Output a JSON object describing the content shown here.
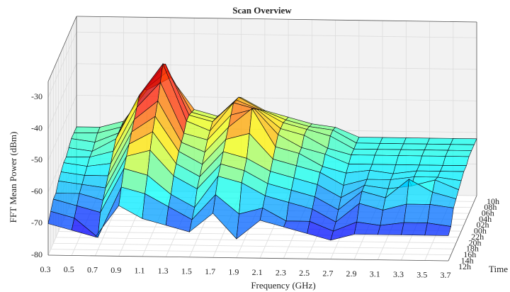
{
  "chart_data": {
    "type": "surface",
    "title": "Scan Overview",
    "xlabel": "Frequency (GHz)",
    "ylabel": "Time",
    "zlabel": "FFT Mean Power (dBm)",
    "x": [
      0.3,
      0.5,
      0.7,
      0.9,
      1.1,
      1.3,
      1.5,
      1.7,
      1.9,
      2.1,
      2.3,
      2.5,
      2.7,
      2.9,
      3.1,
      3.3,
      3.5,
      3.7
    ],
    "xlim": [
      0.3,
      3.7
    ],
    "xticks": [
      0.3,
      0.5,
      0.7,
      0.9,
      1.1,
      1.3,
      1.5,
      1.7,
      1.9,
      2.1,
      2.3,
      2.5,
      2.7,
      2.9,
      3.1,
      3.3,
      3.5,
      3.7
    ],
    "categories": [
      "12h",
      "14h",
      "16h",
      "18h",
      "20h",
      "22h",
      "00h",
      "02h",
      "04h",
      "06h",
      "08h",
      "10h"
    ],
    "zlim": [
      -80,
      -25
    ],
    "zticks": [
      -80,
      -70,
      -60,
      -50,
      -40,
      -30
    ],
    "colormap": "jet",
    "grid": true,
    "z": [
      [
        -70,
        -72,
        -74,
        -64,
        -68,
        -70,
        -72,
        -66,
        -74,
        -68,
        -70,
        -72,
        -74,
        -72,
        -72,
        -72,
        -72,
        -72
      ],
      [
        -68,
        -70,
        -76,
        -60,
        -62,
        -66,
        -70,
        -62,
        -68,
        -66,
        -70,
        -70,
        -73,
        -70,
        -71,
        -70,
        -70,
        -71
      ],
      [
        -66,
        -68,
        -70,
        -56,
        -58,
        -64,
        -68,
        -58,
        -60,
        -64,
        -66,
        -68,
        -72,
        -66,
        -68,
        -66,
        -66,
        -67
      ],
      [
        -66,
        -66,
        -68,
        -54,
        -52,
        -60,
        -64,
        -56,
        -58,
        -62,
        -64,
        -66,
        -70,
        -64,
        -66,
        -60,
        -64,
        -66
      ],
      [
        -64,
        -65,
        -66,
        -52,
        -48,
        -58,
        -62,
        -54,
        -56,
        -60,
        -62,
        -64,
        -68,
        -64,
        -65,
        -64,
        -62,
        -65
      ],
      [
        -63,
        -64,
        -64,
        -50,
        -45,
        -56,
        -60,
        -52,
        -50,
        -58,
        -60,
        -62,
        -66,
        -64,
        -64,
        -63,
        -63,
        -64
      ],
      [
        -62,
        -63,
        -62,
        -48,
        -42,
        -55,
        -58,
        -50,
        -44,
        -56,
        -58,
        -62,
        -64,
        -63,
        -64,
        -63,
        -63,
        -63
      ],
      [
        -62,
        -62,
        -60,
        -46,
        -38,
        -54,
        -56,
        -48,
        -46,
        -54,
        -58,
        -60,
        -63,
        -63,
        -63,
        -63,
        -63,
        -63
      ],
      [
        -61,
        -62,
        -58,
        -44,
        -34,
        -52,
        -55,
        -46,
        -48,
        -54,
        -56,
        -60,
        -62,
        -62,
        -62,
        -62,
        -62,
        -62
      ],
      [
        -60,
        -61,
        -58,
        -45,
        -36,
        -52,
        -54,
        -47,
        -50,
        -54,
        -56,
        -58,
        -62,
        -62,
        -62,
        -62,
        -62,
        -62
      ],
      [
        -60,
        -60,
        -58,
        -46,
        -40,
        -53,
        -55,
        -48,
        -52,
        -55,
        -57,
        -58,
        -62,
        -62,
        -62,
        -62,
        -62,
        -62
      ],
      [
        -60,
        -60,
        -58,
        -48,
        -44,
        -54,
        -56,
        -50,
        -54,
        -56,
        -58,
        -59,
        -62,
        -62,
        -62,
        -62,
        -62,
        -62
      ]
    ]
  }
}
